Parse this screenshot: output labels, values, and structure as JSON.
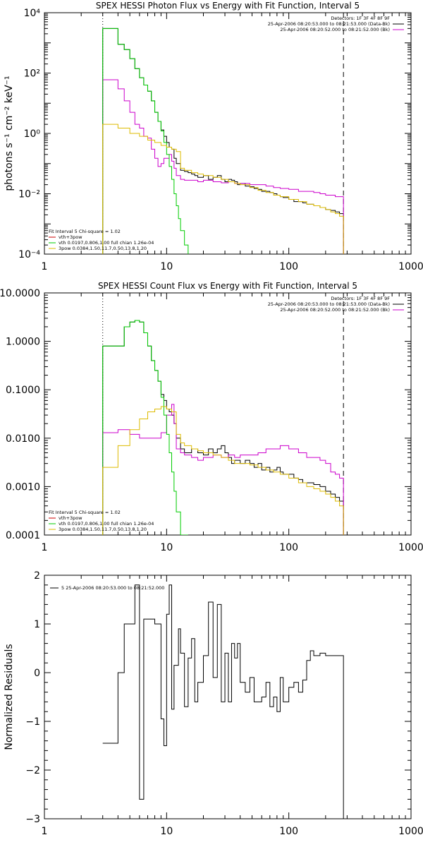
{
  "chart_data": [
    {
      "type": "line",
      "title": "SPEX HESSI Photon Flux vs Energy with Fit Function, Interval 5",
      "ylabel": "photons s⁻¹ cm⁻² keV⁻¹",
      "xlabel": "",
      "x_scale": "log",
      "y_scale": "log",
      "xlim": [
        1,
        1000
      ],
      "ylim": [
        0.0001,
        10000
      ],
      "x_ticks": [
        "1",
        "10",
        "100",
        "1000"
      ],
      "y_ticks": [
        "10⁻⁴",
        "10⁻²",
        "10⁰",
        "10²",
        "10⁴"
      ],
      "vlines": [
        {
          "x": 3,
          "style": "dotted"
        },
        {
          "x": 280,
          "style": "dashed"
        }
      ],
      "legend_top": [
        "Detectors: 1F 3F 4F 8F 9F",
        "25-Apr-2006 08:20:53.000 to 08:21:53.000 (Data-Bk)",
        "25-Apr-2006 08:20:52.000 to 08:21:52.000 (Bk)"
      ],
      "legend_bottom": [
        "Fit Interval 5   Chi-square = 1.02",
        "vth+3pow",
        "vth 0.0197,0.806,1.00  full chian 1.26e-04",
        "3pow 0.0384,1.50,11.7,0.50,13.8,1.20"
      ],
      "series": [
        {
          "name": "Data-Bk",
          "color": "#000000",
          "step": true,
          "x": [
            3.0,
            3.5,
            4.0,
            4.5,
            5.0,
            5.5,
            6.0,
            6.5,
            7.0,
            7.5,
            8.0,
            8.5,
            9.0,
            9.5,
            10.0,
            10.5,
            11.0,
            11.5,
            12.0,
            13,
            14,
            15,
            16,
            17,
            18,
            20,
            22,
            24,
            26,
            28,
            30,
            32,
            34,
            36,
            38,
            40,
            44,
            48,
            52,
            56,
            60,
            65,
            70,
            75,
            80,
            85,
            90,
            100,
            110,
            120,
            130,
            140,
            150,
            160,
            180,
            200,
            220,
            240,
            260,
            280
          ],
          "y": [
            3000,
            3000,
            900,
            600,
            300,
            140,
            70,
            40,
            25,
            12,
            5,
            2.5,
            1.3,
            0.8,
            0.5,
            0.35,
            0.3,
            0.15,
            0.1,
            0.06,
            0.055,
            0.05,
            0.045,
            0.04,
            0.035,
            0.04,
            0.03,
            0.035,
            0.04,
            0.03,
            0.025,
            0.03,
            0.028,
            0.025,
            0.02,
            0.022,
            0.018,
            0.017,
            0.015,
            0.014,
            0.012,
            0.012,
            0.011,
            0.01,
            0.009,
            0.008,
            0.0075,
            0.0065,
            0.0055,
            0.0055,
            0.005,
            0.0045,
            0.0045,
            0.004,
            0.0035,
            0.003,
            0.0028,
            0.0025,
            0.0022,
            0.002
          ]
        },
        {
          "name": "Bk",
          "color": "#cc00cc",
          "step": true,
          "x": [
            3.0,
            4.0,
            4.5,
            5.0,
            5.5,
            6.0,
            6.5,
            7.0,
            7.5,
            8.0,
            8.5,
            9.0,
            9.5,
            10.0,
            10.5,
            11.0,
            11.5,
            12.0,
            13,
            14,
            16,
            18,
            20,
            24,
            28,
            32,
            36,
            40,
            48,
            56,
            65,
            75,
            85,
            100,
            120,
            140,
            160,
            180,
            200,
            220,
            240,
            260,
            280
          ],
          "y": [
            60,
            30,
            12,
            5,
            2,
            1.5,
            0.8,
            0.7,
            0.3,
            0.15,
            0.08,
            0.1,
            0.15,
            0.15,
            0.2,
            0.12,
            0.07,
            0.04,
            0.03,
            0.028,
            0.028,
            0.025,
            0.028,
            0.025,
            0.023,
            0.025,
            0.022,
            0.022,
            0.02,
            0.02,
            0.018,
            0.016,
            0.015,
            0.014,
            0.012,
            0.012,
            0.011,
            0.01,
            0.009,
            0.009,
            0.008,
            0.008,
            0.007
          ]
        },
        {
          "name": "vth",
          "color": "#00cc00",
          "step": true,
          "x": [
            3.0,
            3.5,
            4.0,
            4.5,
            5.0,
            5.5,
            6.0,
            6.5,
            7.0,
            7.5,
            8.0,
            8.5,
            9.0,
            9.5,
            10.0,
            10.5,
            11.0,
            11.5,
            12.0,
            12.5,
            13.0,
            14.0,
            15
          ],
          "y": [
            3000,
            3000,
            900,
            600,
            300,
            140,
            70,
            40,
            25,
            12,
            5,
            2.5,
            1.2,
            0.5,
            0.2,
            0.08,
            0.03,
            0.01,
            0.004,
            0.0015,
            0.0006,
            0.0002,
            0.0001
          ]
        },
        {
          "name": "3pow",
          "color": "#ddbb00",
          "step": true,
          "x": [
            3.0,
            4.0,
            5.0,
            6.0,
            7.0,
            8.0,
            9.0,
            10.0,
            11.0,
            12.0,
            13,
            14,
            16,
            18,
            20,
            24,
            28,
            32,
            36,
            40,
            48,
            56,
            65,
            75,
            85,
            100,
            120,
            140,
            160,
            180,
            200,
            220,
            240,
            260,
            280
          ],
          "y": [
            2,
            1.5,
            1,
            0.8,
            0.6,
            0.5,
            0.4,
            0.35,
            0.3,
            0.25,
            0.07,
            0.06,
            0.05,
            0.045,
            0.04,
            0.035,
            0.03,
            0.025,
            0.022,
            0.02,
            0.016,
            0.013,
            0.011,
            0.009,
            0.008,
            0.0065,
            0.0055,
            0.0045,
            0.004,
            0.0035,
            0.003,
            0.0025,
            0.0022,
            0.0018,
            0.0016
          ]
        }
      ]
    },
    {
      "type": "line",
      "title": "SPEX HESSI Count Flux vs Energy with Fit Function, Interval 5",
      "ylabel": "",
      "xlabel": "",
      "x_scale": "log",
      "y_scale": "log",
      "xlim": [
        1,
        1000
      ],
      "ylim": [
        0.0001,
        10
      ],
      "x_ticks": [
        "1",
        "10",
        "100",
        "1000"
      ],
      "y_ticks": [
        "0.0001",
        "0.0010",
        "0.0100",
        "0.1000",
        "1.0000",
        "10.0000"
      ],
      "vlines": [
        {
          "x": 3,
          "style": "dotted"
        },
        {
          "x": 280,
          "style": "dashed"
        }
      ],
      "legend_top": [
        "Detectors: 1F 3F 4F 8F 9F",
        "25-Apr-2006 08:20:53.000 to 08:21:53.000 (Data-Bk)",
        "25-Apr-2006 08:20:52.000 to 08:21:52.000 (Bk)"
      ],
      "legend_bottom": [
        "Fit Interval 5   Chi-square = 1.02",
        "vth+3pow",
        "vth 0.0197,0.806,1.00  full chian 1.26e-04",
        "3pow 0.0384,1.50,11.7,0.50,13.8,1.20"
      ],
      "series": [
        {
          "name": "Data-Bk",
          "color": "#000000",
          "step": true,
          "x": [
            3.0,
            4.0,
            4.5,
            5.0,
            5.5,
            6.0,
            6.5,
            7.0,
            7.5,
            8.0,
            8.5,
            9.0,
            9.5,
            10.0,
            10.5,
            11.0,
            11.5,
            12.0,
            13,
            14,
            16,
            18,
            20,
            22,
            24,
            26,
            28,
            30,
            32,
            34,
            36,
            40,
            44,
            48,
            52,
            56,
            60,
            65,
            70,
            75,
            80,
            85,
            90,
            100,
            110,
            120,
            130,
            140,
            160,
            180,
            200,
            220,
            240,
            260,
            280
          ],
          "y": [
            0.8,
            0.8,
            2,
            2.5,
            2.7,
            2.5,
            1.5,
            0.8,
            0.4,
            0.25,
            0.15,
            0.08,
            0.06,
            0.04,
            0.035,
            0.03,
            0.02,
            0.01,
            0.006,
            0.005,
            0.006,
            0.005,
            0.0045,
            0.006,
            0.005,
            0.006,
            0.007,
            0.005,
            0.004,
            0.003,
            0.0035,
            0.003,
            0.0035,
            0.003,
            0.0025,
            0.003,
            0.0022,
            0.0025,
            0.002,
            0.0022,
            0.0025,
            0.002,
            0.0018,
            0.0018,
            0.0015,
            0.0014,
            0.0012,
            0.0012,
            0.0011,
            0.001,
            0.0008,
            0.0007,
            0.0006,
            0.0005,
            0.0004
          ]
        },
        {
          "name": "Bk",
          "color": "#cc00cc",
          "step": true,
          "x": [
            3.0,
            4.0,
            5.0,
            6.0,
            7.0,
            8.0,
            9.0,
            10.0,
            11.0,
            11.5,
            12.0,
            13,
            14,
            16,
            18,
            20,
            24,
            28,
            32,
            36,
            40,
            48,
            56,
            65,
            75,
            85,
            100,
            120,
            140,
            160,
            180,
            200,
            220,
            240,
            260,
            280
          ],
          "y": [
            0.013,
            0.015,
            0.012,
            0.01,
            0.01,
            0.01,
            0.013,
            0.03,
            0.05,
            0.02,
            0.006,
            0.005,
            0.0045,
            0.004,
            0.0035,
            0.004,
            0.0045,
            0.004,
            0.0045,
            0.004,
            0.0045,
            0.0045,
            0.005,
            0.006,
            0.006,
            0.007,
            0.006,
            0.005,
            0.004,
            0.004,
            0.0035,
            0.003,
            0.002,
            0.0018,
            0.0015,
            0.001
          ]
        },
        {
          "name": "vth",
          "color": "#00cc00",
          "step": true,
          "x": [
            3.0,
            4.0,
            4.5,
            5.0,
            5.5,
            6.0,
            6.5,
            7.0,
            7.5,
            8.0,
            8.5,
            9.0,
            9.5,
            10.0,
            10.5,
            11.0,
            11.5,
            12.0,
            13,
            14,
            15
          ],
          "y": [
            0.8,
            0.8,
            2,
            2.5,
            2.7,
            2.5,
            1.5,
            0.8,
            0.4,
            0.25,
            0.15,
            0.07,
            0.03,
            0.012,
            0.005,
            0.002,
            0.0008,
            0.0003,
            0.0001,
            0.0001,
            0.0001
          ]
        },
        {
          "name": "3pow",
          "color": "#ddbb00",
          "step": true,
          "x": [
            3.0,
            4.0,
            5.0,
            6.0,
            7.0,
            8.0,
            9.0,
            10.0,
            11.0,
            12.0,
            13,
            14,
            16,
            18,
            20,
            24,
            28,
            32,
            36,
            40,
            48,
            56,
            65,
            75,
            85,
            100,
            120,
            140,
            160,
            180,
            200,
            220,
            240,
            260,
            280
          ],
          "y": [
            0.0025,
            0.007,
            0.015,
            0.025,
            0.035,
            0.04,
            0.045,
            0.04,
            0.035,
            0.012,
            0.008,
            0.007,
            0.006,
            0.0055,
            0.005,
            0.0045,
            0.004,
            0.0035,
            0.003,
            0.003,
            0.0028,
            0.0025,
            0.0022,
            0.002,
            0.0018,
            0.0015,
            0.0012,
            0.001,
            0.0009,
            0.0008,
            0.0007,
            0.0006,
            0.0005,
            0.0004,
            0.0003
          ]
        }
      ]
    },
    {
      "type": "line",
      "title": "",
      "ylabel": "Normalized Residuals",
      "xlabel": "",
      "x_scale": "log",
      "y_scale": "linear",
      "xlim": [
        1,
        1000
      ],
      "ylim": [
        -3,
        2
      ],
      "x_ticks": [
        "1",
        "10",
        "100",
        "1000"
      ],
      "y_ticks": [
        "−3",
        "−2",
        "−1",
        "0",
        "1",
        "2"
      ],
      "legend": [
        "5  25-Apr-2006 08:20:53.000 to 08:21:52.000"
      ],
      "series": [
        {
          "name": "5  25-Apr-2006 08:20:53.000 to 08:21:52.000",
          "color": "#000000",
          "step": true,
          "x": [
            3.0,
            4.0,
            4.5,
            5.0,
            5.5,
            6.0,
            6.5,
            7.0,
            8.0,
            9.0,
            9.5,
            10.0,
            10.5,
            11.0,
            11.5,
            12.0,
            12.5,
            13,
            14,
            15,
            16,
            17,
            18,
            20,
            22,
            24,
            26,
            28,
            30,
            32,
            34,
            36,
            38,
            40,
            44,
            48,
            52,
            56,
            60,
            65,
            70,
            75,
            80,
            85,
            90,
            100,
            110,
            120,
            130,
            140,
            150,
            160,
            180,
            200,
            220,
            240,
            260,
            280
          ],
          "y": [
            -1.45,
            0,
            1,
            1,
            1.8,
            -2.6,
            1.1,
            1.1,
            1,
            -0.95,
            -1.5,
            1.2,
            1.8,
            -0.75,
            0.15,
            0.15,
            0.9,
            0.4,
            -0.7,
            0.3,
            0.7,
            -0.6,
            -0.2,
            0.35,
            1.45,
            -0.1,
            1.4,
            -0.6,
            0.4,
            -0.6,
            0.6,
            0.3,
            0.6,
            -0.2,
            -0.4,
            -0.1,
            -0.6,
            -0.6,
            -0.5,
            -0.2,
            -0.7,
            -0.5,
            -0.8,
            -0.1,
            -0.6,
            -0.3,
            -0.2,
            -0.4,
            -0.15,
            0.25,
            0.45,
            0.35,
            0.4,
            0.35,
            0.35,
            0.35,
            0.35,
            0.35
          ]
        }
      ]
    }
  ]
}
